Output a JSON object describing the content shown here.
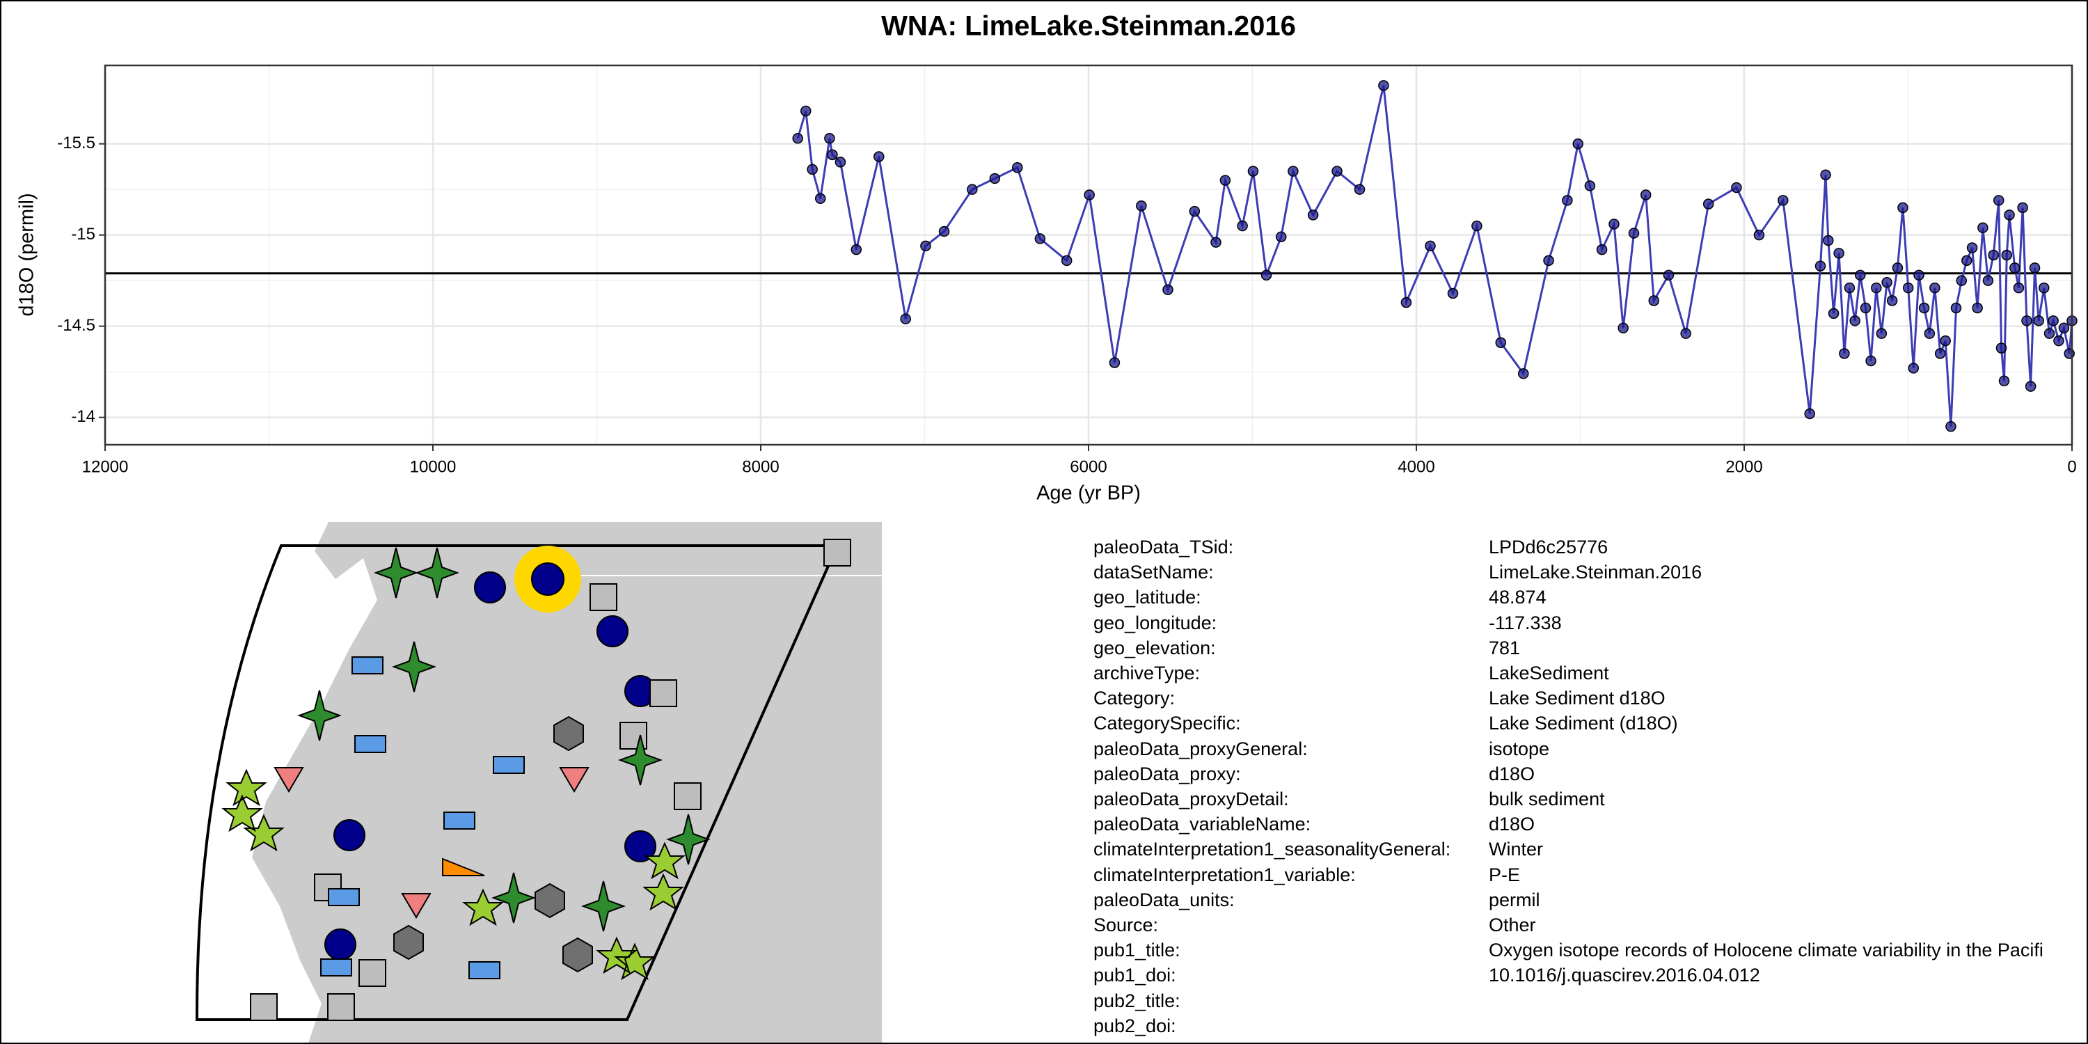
{
  "chart_data": {
    "type": "line",
    "title": "WNA: LimeLake.Steinman.2016",
    "x_label": "Age (yr BP)",
    "y_label": "d18O (permil)",
    "xlim": [
      12000,
      0
    ],
    "xticks": [
      12000,
      10000,
      8000,
      6000,
      4000,
      2000,
      0
    ],
    "ylim": [
      -13.85,
      -15.93
    ],
    "yticks": [
      -15.5,
      -15.0,
      -14.5,
      -14.0
    ],
    "grid": true,
    "hline": -14.79,
    "line_color": "#3c3cb4",
    "marker_color": "#1a1a8c",
    "x": [
      7774,
      7725,
      7685,
      7636,
      7580,
      7563,
      7514,
      7417,
      7279,
      7116,
      6994,
      6881,
      6710,
      6572,
      6434,
      6296,
      6133,
      5995,
      5841,
      5678,
      5516,
      5353,
      5223,
      5166,
      5061,
      4996,
      4915,
      4825,
      4752,
      4630,
      4484,
      4346,
      4200,
      4062,
      3915,
      3777,
      3631,
      3485,
      3347,
      3193,
      3079,
      3014,
      2941,
      2868,
      2794,
      2738,
      2673,
      2600,
      2551,
      2461,
      2356,
      2218,
      2047,
      1909,
      1763,
      1600,
      1535,
      1503,
      1487,
      1454,
      1422,
      1389,
      1357,
      1324,
      1292,
      1259,
      1227,
      1194,
      1162,
      1129,
      1097,
      1064,
      1032,
      999,
      967,
      934,
      902,
      869,
      837,
      804,
      772,
      739,
      707,
      674,
      642,
      609,
      577,
      544,
      512,
      479,
      447,
      431,
      414,
      398,
      382,
      349,
      325,
      301,
      276,
      252,
      227,
      203,
      171,
      138,
      114,
      81,
      49,
      16,
      0
    ],
    "values": [
      -15.53,
      -15.68,
      -15.36,
      -15.2,
      -15.53,
      -15.44,
      -15.4,
      -14.92,
      -15.43,
      -14.54,
      -14.94,
      -15.02,
      -15.25,
      -15.31,
      -15.37,
      -14.98,
      -14.86,
      -15.22,
      -14.3,
      -15.16,
      -14.7,
      -15.13,
      -14.96,
      -15.3,
      -15.05,
      -15.35,
      -14.78,
      -14.99,
      -15.35,
      -15.11,
      -15.35,
      -15.25,
      -15.82,
      -14.63,
      -14.94,
      -14.68,
      -15.05,
      -14.41,
      -14.24,
      -14.86,
      -15.19,
      -15.5,
      -15.27,
      -14.92,
      -15.06,
      -14.49,
      -15.01,
      -15.22,
      -14.64,
      -14.78,
      -14.46,
      -15.17,
      -15.26,
      -15.0,
      -15.19,
      -14.02,
      -14.83,
      -15.33,
      -14.97,
      -14.57,
      -14.9,
      -14.35,
      -14.71,
      -14.53,
      -14.78,
      -14.6,
      -14.31,
      -14.71,
      -14.46,
      -14.74,
      -14.64,
      -14.82,
      -15.15,
      -14.71,
      -14.27,
      -14.78,
      -14.6,
      -14.46,
      -14.71,
      -14.35,
      -14.42,
      -13.95,
      -14.6,
      -14.75,
      -14.86,
      -14.93,
      -14.6,
      -15.04,
      -14.75,
      -14.89,
      -15.19,
      -14.38,
      -14.2,
      -14.89,
      -15.11,
      -14.82,
      -14.71,
      -15.15,
      -14.53,
      -14.17,
      -14.82,
      -14.53,
      -14.71,
      -14.46,
      -14.53,
      -14.42,
      -14.49,
      -14.35,
      -14.53
    ]
  },
  "metadata": {
    "rows": [
      [
        "paleoData_TSid:",
        "LPDd6c25776"
      ],
      [
        "dataSetName:",
        "LimeLake.Steinman.2016"
      ],
      [
        "geo_latitude:",
        "48.874"
      ],
      [
        "geo_longitude:",
        "-117.338"
      ],
      [
        "geo_elevation:",
        "781"
      ],
      [
        "archiveType:",
        "LakeSediment"
      ],
      [
        "Category:",
        "Lake Sediment d18O"
      ],
      [
        "CategorySpecific:",
        "Lake Sediment (d18O)"
      ],
      [
        "paleoData_proxyGeneral:",
        "isotope"
      ],
      [
        "paleoData_proxy:",
        "d18O"
      ],
      [
        "paleoData_proxyDetail:",
        "bulk sediment"
      ],
      [
        "paleoData_variableName:",
        "d18O"
      ],
      [
        "climateInterpretation1_seasonalityGeneral:",
        "Winter"
      ],
      [
        "climateInterpretation1_variable:",
        "P-E"
      ],
      [
        "paleoData_units:",
        "permil"
      ],
      [
        "Source:",
        "Other"
      ],
      [
        "pub1_title:",
        "Oxygen isotope records of Holocene climate variability in the Pacifi"
      ],
      [
        "pub1_doi:",
        "10.1016/j.quascirev.2016.04.012"
      ],
      [
        "pub2_title:"
      ],
      [
        "pub2_doi:"
      ]
    ]
  }
}
